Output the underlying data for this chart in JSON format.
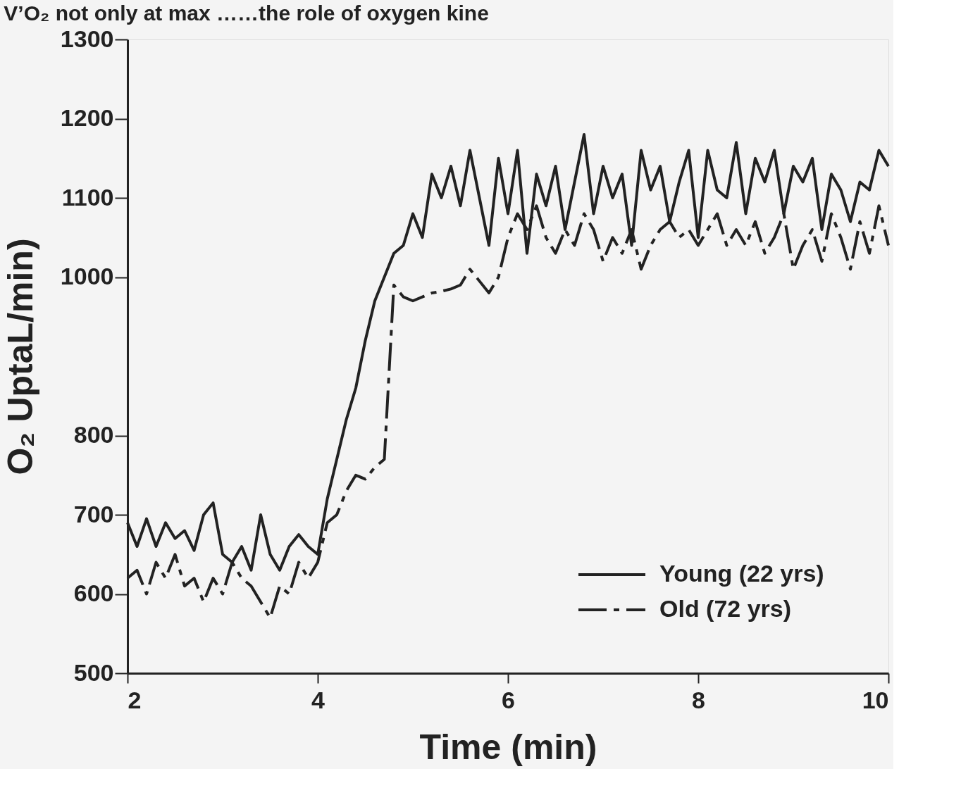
{
  "chart_data": {
    "type": "line",
    "title": "V’O₂ not only at max ……the role of oxygen kine",
    "xlabel": "Time (min)",
    "ylabel": "O₂ UptaL/min)",
    "x": [
      2.0,
      2.1,
      2.2,
      2.3,
      2.4,
      2.5,
      2.6,
      2.7,
      2.8,
      2.9,
      3.0,
      3.1,
      3.2,
      3.3,
      3.4,
      3.5,
      3.6,
      3.7,
      3.8,
      3.9,
      4.0,
      4.1,
      4.2,
      4.3,
      4.4,
      4.5,
      4.6,
      4.7,
      4.8,
      4.9,
      5.0,
      5.1,
      5.2,
      5.3,
      5.4,
      5.5,
      5.6,
      5.7,
      5.8,
      5.9,
      6.0,
      6.1,
      6.2,
      6.3,
      6.4,
      6.5,
      6.6,
      6.7,
      6.8,
      6.9,
      7.0,
      7.1,
      7.2,
      7.3,
      7.4,
      7.5,
      7.6,
      7.7,
      7.8,
      7.9,
      8.0,
      8.1,
      8.2,
      8.3,
      8.4,
      8.5,
      8.6,
      8.7,
      8.8,
      8.9,
      9.0,
      9.1,
      9.2,
      9.3,
      9.4,
      9.5,
      9.6,
      9.7,
      9.8,
      9.9,
      10.0
    ],
    "series": [
      {
        "name": "Young (22 yrs)",
        "color": "#222222",
        "line_style": "solid",
        "values": [
          690,
          660,
          695,
          660,
          690,
          670,
          680,
          655,
          700,
          715,
          650,
          640,
          660,
          630,
          700,
          650,
          630,
          660,
          675,
          660,
          650,
          720,
          770,
          820,
          860,
          920,
          970,
          1000,
          1030,
          1040,
          1080,
          1050,
          1130,
          1100,
          1140,
          1090,
          1160,
          1100,
          1040,
          1150,
          1080,
          1160,
          1030,
          1130,
          1090,
          1140,
          1060,
          1120,
          1180,
          1080,
          1140,
          1100,
          1130,
          1040,
          1160,
          1110,
          1140,
          1070,
          1120,
          1160,
          1050,
          1160,
          1110,
          1100,
          1170,
          1080,
          1150,
          1120,
          1160,
          1080,
          1140,
          1120,
          1150,
          1060,
          1130,
          1110,
          1070,
          1120,
          1110,
          1160,
          1140
        ]
      },
      {
        "name": "Old (72 yrs)",
        "color": "#222222",
        "line_style": "dashed",
        "values": [
          620,
          630,
          600,
          640,
          620,
          650,
          610,
          620,
          590,
          620,
          600,
          640,
          620,
          610,
          590,
          570,
          610,
          600,
          640,
          620,
          640,
          690,
          700,
          730,
          750,
          745,
          760,
          770,
          990,
          975,
          970,
          975,
          980,
          982,
          985,
          990,
          1010,
          995,
          980,
          1000,
          1050,
          1080,
          1060,
          1090,
          1050,
          1030,
          1060,
          1040,
          1080,
          1060,
          1020,
          1050,
          1030,
          1060,
          1010,
          1040,
          1060,
          1070,
          1050,
          1060,
          1040,
          1060,
          1080,
          1040,
          1060,
          1040,
          1070,
          1030,
          1050,
          1080,
          1010,
          1040,
          1060,
          1020,
          1080,
          1050,
          1010,
          1070,
          1030,
          1090,
          1040
        ]
      }
    ],
    "xlim": [
      2,
      10
    ],
    "xticks": [
      2,
      4,
      6,
      8,
      10
    ],
    "ylim": [
      500,
      1300
    ],
    "yticks": [
      500,
      600,
      700,
      800,
      1000,
      1100,
      1200,
      1300
    ],
    "grid": false,
    "legend": "bottom right",
    "marker": "none"
  }
}
